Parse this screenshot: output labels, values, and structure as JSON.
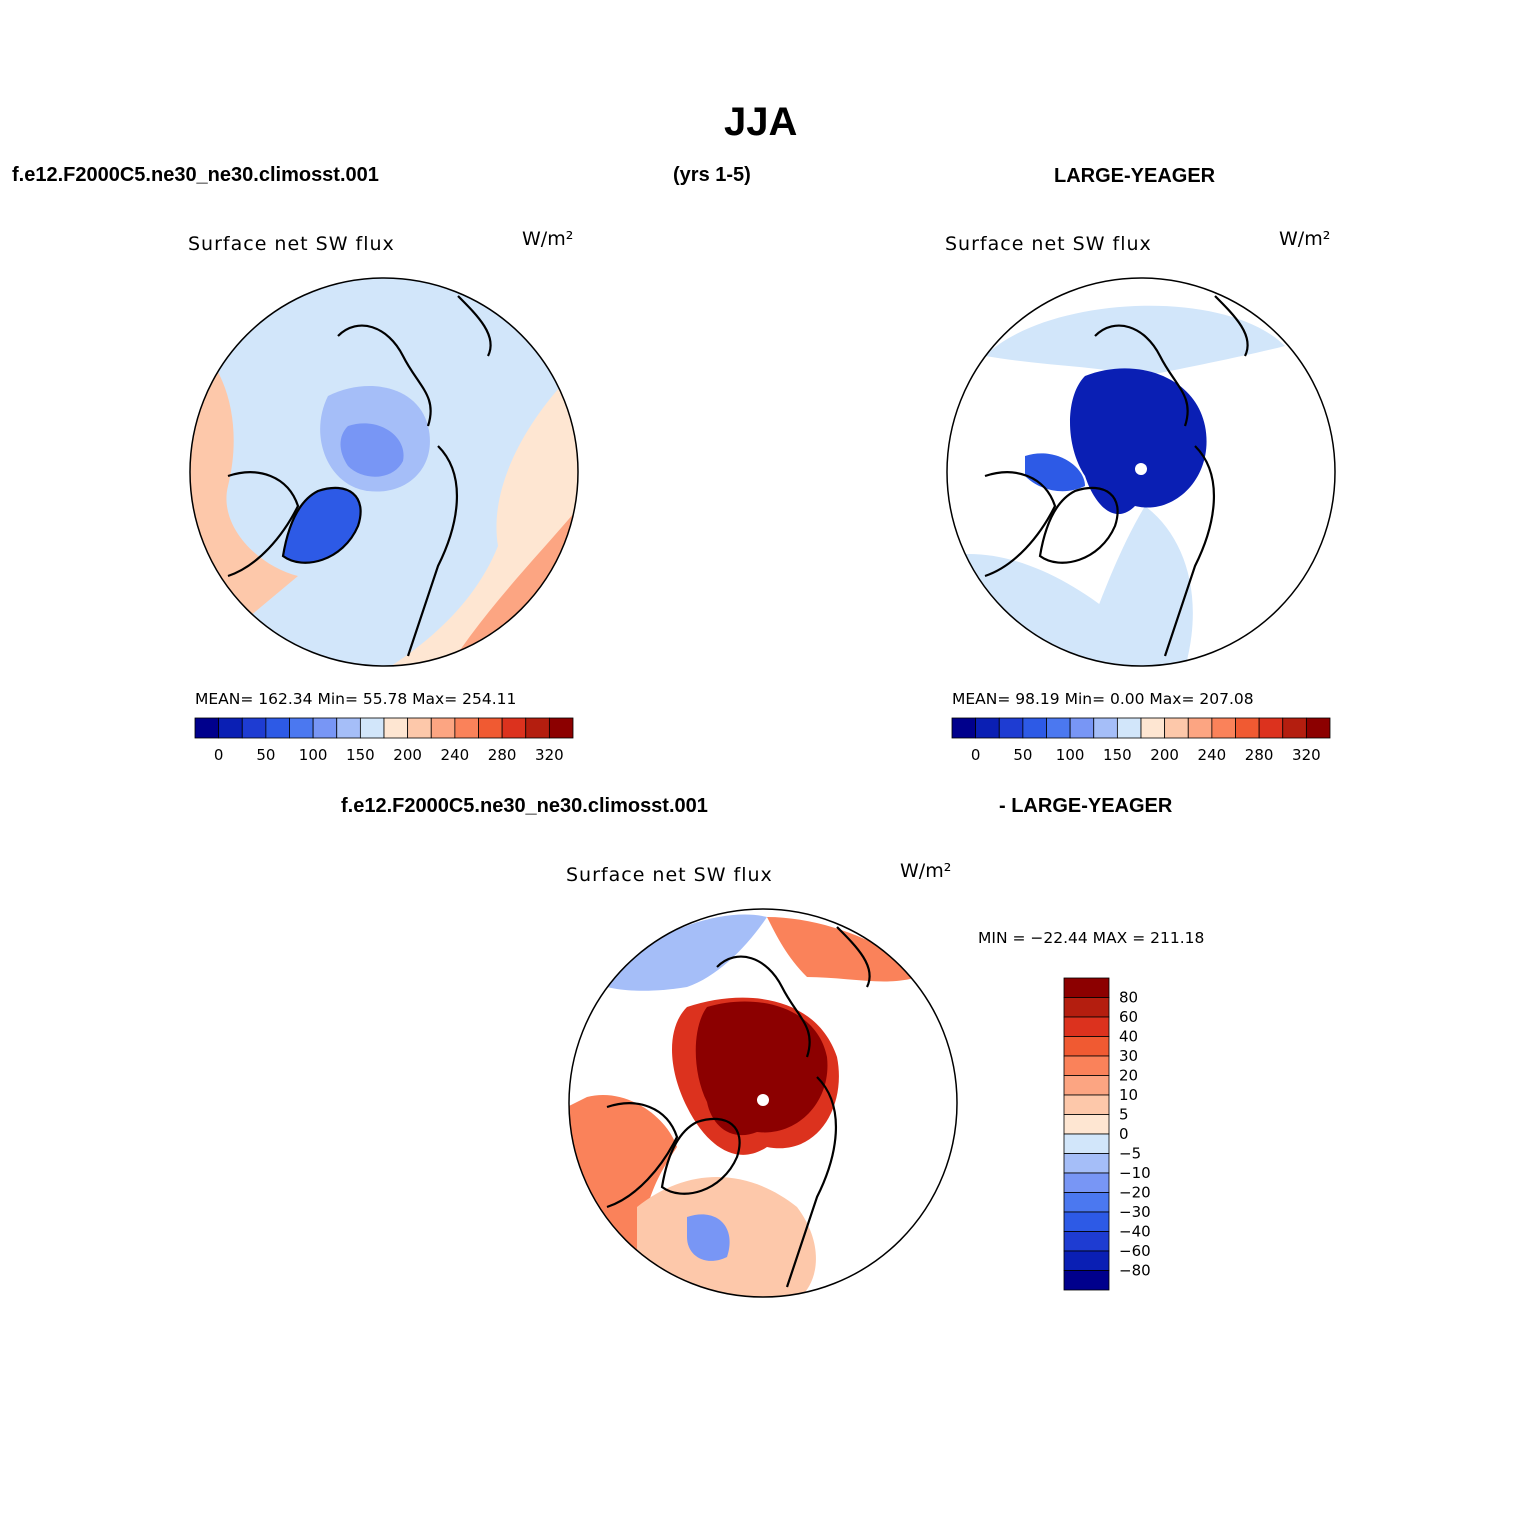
{
  "page": {
    "title": "JJA",
    "case_label": "f.e12.F2000C5.ne30_ne30.climosst.001",
    "years": "(yrs 1-5)",
    "obs_label": "LARGE-YEAGER",
    "diff_case_label": "f.e12.F2000C5.ne30_ne30.climosst.001",
    "diff_obs_label": "- LARGE-YEAGER"
  },
  "panels": {
    "model": {
      "subtitle": "Surface net SW flux",
      "units": "W/m²",
      "stats": "MEAN=  162.34   Min=   55.78   Max=  254.11"
    },
    "obs": {
      "subtitle": "Surface net SW flux",
      "units": "W/m²",
      "stats": "MEAN=   98.19   Min=    0.00   Max=  207.08"
    },
    "diff": {
      "subtitle": "Surface net SW flux",
      "units": "W/m²",
      "stats": "MIN = −22.44  MAX = 211.18"
    }
  },
  "colorbars": {
    "absolute": {
      "colors": [
        "#00008c",
        "#0a1fb4",
        "#1e3cd2",
        "#2d5ae6",
        "#4b78f0",
        "#7896f5",
        "#a5bef8",
        "#d2e6fa",
        "#fee6d2",
        "#fdc8aa",
        "#fca582",
        "#fa825a",
        "#f05a32",
        "#dc321e",
        "#b41e0f",
        "#8c0000"
      ],
      "labels": [
        "0",
        "50",
        "100",
        "150",
        "200",
        "240",
        "280",
        "320"
      ]
    },
    "difference": {
      "colors": [
        "#00008c",
        "#0a1fb4",
        "#1e3cd2",
        "#2d5ae6",
        "#4b78f0",
        "#7896f5",
        "#a5bef8",
        "#d2e6fa",
        "#fee6d2",
        "#fdc8aa",
        "#fca582",
        "#fa825a",
        "#f05a32",
        "#dc321e",
        "#b41e0f",
        "#8c0000"
      ],
      "labels": [
        "80",
        "60",
        "40",
        "30",
        "20",
        "10",
        "5",
        "0",
        "−5",
        "−10",
        "−20",
        "−30",
        "−40",
        "−60",
        "−80"
      ]
    }
  }
}
